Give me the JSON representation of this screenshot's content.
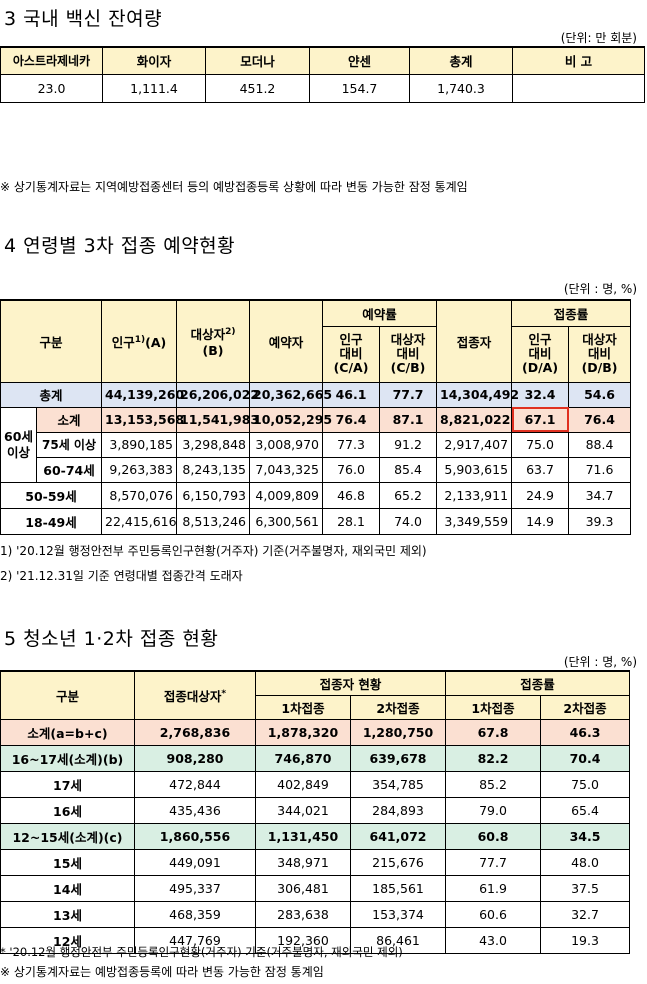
{
  "section3": {
    "title": "3 국내 백신 잔여량",
    "unit": "(단위: 만 회분)",
    "headers": [
      "아스트라제네카",
      "화이자",
      "모더나",
      "얀센",
      "총계",
      "비 고"
    ],
    "values": [
      "23.0",
      "1,111.4",
      "451.2",
      "154.7",
      "1,740.3",
      ""
    ],
    "note": "※ 상기통계자료는 지역예방접종센터 등의 예방접종등록 상황에 따라 변동 가능한 잠정 통계임"
  },
  "section4": {
    "title": "4 연령별 3차 접종 예약현황",
    "unit": "(단위 : 명, %)",
    "headers": {
      "category": "구분",
      "population": "인구",
      "population_sup": "1)",
      "population_sub": "(A)",
      "target": "대상자",
      "target_sup": "2)",
      "target_sub": "(B)",
      "reserved": "예약자",
      "reserve_rate": "예약률",
      "rr_pop": "인구\n대비\n(C/A)",
      "rr_target": "대상자\n대비\n(C/B)",
      "vaccinated": "접종자",
      "vacc_rate": "접종률",
      "vr_pop": "인구\n대비\n(D/A)",
      "vr_target": "대상자\n대비\n(D/B)"
    },
    "group_label": "60세\n이상",
    "rows": [
      {
        "label": "총계",
        "pop": "44,139,260",
        "target": "26,206,022",
        "reserved": "20,362,665",
        "rr_pop": "46.1",
        "rr_target": "77.7",
        "vacc": "14,304,492",
        "vr_pop": "32.4",
        "vr_target": "54.6"
      },
      {
        "label": "소계",
        "pop": "13,153,568",
        "target": "11,541,983",
        "reserved": "10,052,295",
        "rr_pop": "76.4",
        "rr_target": "87.1",
        "vacc": "8,821,022",
        "vr_pop": "67.1",
        "vr_target": "76.4"
      },
      {
        "label": "75세 이상",
        "pop": "3,890,185",
        "target": "3,298,848",
        "reserved": "3,008,970",
        "rr_pop": "77.3",
        "rr_target": "91.2",
        "vacc": "2,917,407",
        "vr_pop": "75.0",
        "vr_target": "88.4"
      },
      {
        "label": "60-74세",
        "pop": "9,263,383",
        "target": "8,243,135",
        "reserved": "7,043,325",
        "rr_pop": "76.0",
        "rr_target": "85.4",
        "vacc": "5,903,615",
        "vr_pop": "63.7",
        "vr_target": "71.6"
      },
      {
        "label": "50-59세",
        "pop": "8,570,076",
        "target": "6,150,793",
        "reserved": "4,009,809",
        "rr_pop": "46.8",
        "rr_target": "65.2",
        "vacc": "2,133,911",
        "vr_pop": "24.9",
        "vr_target": "34.7"
      },
      {
        "label": "18-49세",
        "pop": "22,415,616",
        "target": "8,513,246",
        "reserved": "6,300,561",
        "rr_pop": "28.1",
        "rr_target": "74.0",
        "vacc": "3,349,559",
        "vr_pop": "14.9",
        "vr_target": "39.3"
      }
    ],
    "note1": "1) '20.12월 행정안전부 주민등록인구현황(거주자) 기준(거주불명자, 재외국민 제외)",
    "note2": "2) '21.12.31일 기준 연령대별 접종간격 도래자"
  },
  "section5": {
    "title": "5 청소년 1·2차 접종 현황",
    "unit": "(단위 : 명, %)",
    "headers": {
      "category": "구분",
      "target": "접종대상자",
      "target_sup": "*",
      "status": "접종자 현황",
      "rate": "접종률",
      "first": "1차접종",
      "second": "2차접종",
      "first_rate": "1차접종",
      "second_rate": "2차접종"
    },
    "rows": [
      {
        "label": "소계(a=b+c)",
        "target": "2,768,836",
        "first": "1,878,320",
        "second": "1,280,750",
        "first_rate": "67.8",
        "second_rate": "46.3"
      },
      {
        "label": "16~17세(소계)(b)",
        "target": "908,280",
        "first": "746,870",
        "second": "639,678",
        "first_rate": "82.2",
        "second_rate": "70.4"
      },
      {
        "label": "17세",
        "target": "472,844",
        "first": "402,849",
        "second": "354,785",
        "first_rate": "85.2",
        "second_rate": "75.0"
      },
      {
        "label": "16세",
        "target": "435,436",
        "first": "344,021",
        "second": "284,893",
        "first_rate": "79.0",
        "second_rate": "65.4"
      },
      {
        "label": "12~15세(소계)(c)",
        "target": "1,860,556",
        "first": "1,131,450",
        "second": "641,072",
        "first_rate": "60.8",
        "second_rate": "34.5"
      },
      {
        "label": "15세",
        "target": "449,091",
        "first": "348,971",
        "second": "215,676",
        "first_rate": "77.7",
        "second_rate": "48.0"
      },
      {
        "label": "14세",
        "target": "495,337",
        "first": "306,481",
        "second": "185,561",
        "first_rate": "61.9",
        "second_rate": "37.5"
      },
      {
        "label": "13세",
        "target": "468,359",
        "first": "283,638",
        "second": "153,374",
        "first_rate": "60.6",
        "second_rate": "32.7"
      },
      {
        "label": "12세",
        "target": "447,769",
        "first": "192,360",
        "second": "86,461",
        "first_rate": "43.0",
        "second_rate": "19.3"
      }
    ],
    "note1": "* '20.12월 행정안전부 주민등록인구현황(거주자) 기준(거주불명자, 재외국민 제외)",
    "note2": "※ 상기통계자료는 예방접종등록에 따라 변동 가능한 잠정 통계임"
  }
}
